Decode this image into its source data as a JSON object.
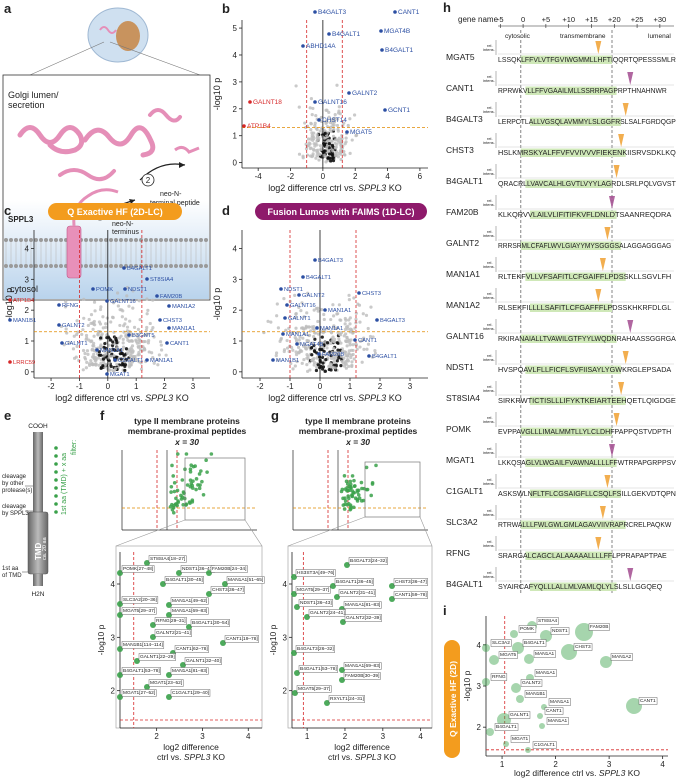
{
  "a": {
    "letter": "a",
    "lumen": [
      "Golgi lumen/",
      "secretion"
    ],
    "sppl3": "SPPL3",
    "step1": "1",
    "step2": "2",
    "neo": [
      "neo-N-",
      "terminus"
    ],
    "peptide": [
      "neo-N-",
      "terminal peptide"
    ],
    "cytosol": "cytosol"
  },
  "b": {
    "letter": "b",
    "ylabel": "-log10 p",
    "xlabel": [
      "log2 difference ctrl vs. ",
      "SPPL3",
      " KO"
    ],
    "xticks": [
      "-4",
      "-2",
      "0",
      "2",
      "4",
      "6"
    ],
    "yticks": [
      "0",
      "1",
      "2",
      "3",
      "4",
      "5"
    ],
    "labels_up": [
      "B4GALT3",
      "CANT1",
      "B4GALT1",
      "MGAT4B",
      "B4GALT1",
      "ABHD14A",
      "GALNT16",
      "GALNT2",
      "CHST14",
      "GCNT1",
      "MGAT5"
    ],
    "labels_down": [
      "GALNT18",
      "ATP1B4"
    ]
  },
  "c": {
    "letter": "c",
    "pill": "Q Exactive HF (2D-LC)",
    "ylabel": "-log10 p",
    "xlabel": [
      "log2 difference ctrl vs. ",
      "SPPL3",
      " KO"
    ],
    "xticks": [
      "-2",
      "-1",
      "0",
      "1",
      "2",
      "3"
    ],
    "yticks": [
      "0",
      "1",
      "2",
      "3",
      "4"
    ],
    "labels_up": [
      "B4GALT1",
      "ST8SIA4",
      "POMK",
      "NDST1",
      "FAM20B",
      "GALNT16",
      "MAN1A2",
      "RFNG",
      "CHST3",
      "MAN1B1",
      "GALNT2",
      "MAN1A1",
      "B3GNT5",
      "CANT1",
      "GALNT1",
      "MAN1A1",
      "C1GALT1",
      "MAN1A1",
      "MGAT1"
    ],
    "labels_down": [
      "ATP1B4",
      "LRRC59"
    ]
  },
  "d": {
    "letter": "d",
    "pill": "Fusion Lumos with FAIMS (1D-LC)",
    "ylabel": "-log10 p",
    "xlabel": [
      "log2 difference ctrl vs. ",
      "SPPL3",
      " KO"
    ],
    "xticks": [
      "-2",
      "-1",
      "0",
      "1",
      "2",
      "3"
    ],
    "yticks": [
      "0",
      "1",
      "2",
      "3",
      "4"
    ],
    "labels_up": [
      "B4GALT3",
      "B4GALT1",
      "NDST1",
      "GALNT2",
      "CHST3",
      "GALNT16",
      "MAN1A1",
      "B4GALT3",
      "GALNT1",
      "MAN1A1",
      "CANT1",
      "MGAT4B",
      "FAM20B",
      "B4GALT1",
      "MAN1B1",
      "MAN1A1"
    ]
  },
  "e": {
    "letter": "e",
    "cooh": "COOH",
    "h2n": "H2N",
    "cleave_other": [
      "cleavage",
      "by other",
      "protease(s)"
    ],
    "cleave_sppl3": [
      "cleavage",
      "by SPPL3"
    ],
    "first_tmd": [
      "1st aa",
      "of TMD"
    ],
    "tmd": "TMD",
    "tmd_len": "ca. 20 aa",
    "filter": "filter:",
    "filter_rule": "1st aa (TMD) + x aa"
  },
  "f": {
    "letter": "f",
    "title": [
      "type II membrane proteins",
      "membrane-proximal peptides"
    ],
    "x_eq": "x = 30",
    "ylabel": "-log10 p",
    "xlabel": [
      "log2 difference",
      "ctrl vs. ",
      "SPPL3",
      " KO"
    ],
    "xticks": [
      "2",
      "3",
      "4"
    ],
    "yticks": [
      "2",
      "3",
      "4"
    ],
    "labels": [
      "ST8SIA4[18–27]",
      "POMK[27–48]",
      "NDST1[36–47]",
      "FAM20B[24–34]",
      "B4GALT1[30–45]",
      "CHST3[36–47]",
      "MAN1A1[51–65]",
      "SLC3A2[20–36]",
      "MAN1A1[49–62]",
      "MAN1A1[69–83]",
      "MGAT5[29–37]",
      "RFNG[29–31]",
      "B4GALT1[30–54]",
      "GALNT2[21–41]",
      "CANT1[19–78]",
      "MAN1B1[114–114]",
      "CANT1[62–78]",
      "GALNT1[22–29]",
      "GALNT1[32–40]",
      "B4GALT1[53–78]",
      "MAN1A1[81–83]",
      "MGAT1[23–52]",
      "MGAT1[27–52]",
      "C1GALT1[29–40]"
    ]
  },
  "g": {
    "letter": "g",
    "title": [
      "type II membrane proteins",
      "membrane-proximal peptides"
    ],
    "x_eq": "x = 30",
    "ylabel": "-log10 p",
    "xlabel": [
      "log2 difference",
      "ctrl vs. ",
      "SPPL3",
      " KO"
    ],
    "xticks": [
      "1",
      "2",
      "3",
      "4"
    ],
    "yticks": [
      "2",
      "3",
      "4"
    ],
    "labels": [
      "B4GALT3[24–32]",
      "HS3ST3A[49–76]",
      "B4GALT1[36–45]",
      "CHST3[36–47]",
      "MGAT5[29–37]",
      "GALNT2[31–41]",
      "CANT1[59–78]",
      "NDST1[36–43]",
      "MAN1A1[81–83]",
      "GALNT2[24–41]",
      "GALNT2[32–39]",
      "B4GALT3[26–32]",
      "B4GALT1[53–78]",
      "MAN1A1[69–83]",
      "FAM20B[30–39]",
      "MGAT5[29–37]",
      "RXYLT1[24–31]"
    ]
  },
  "h": {
    "letter": "h",
    "header": "gene name",
    "ticks": [
      "-5",
      "0",
      "+5",
      "+10",
      "+15",
      "+20",
      "+25",
      "+30"
    ],
    "regions": [
      "cytosolic",
      "transmembrane",
      "lumenal"
    ],
    "intens": [
      "rel.",
      "intens."
    ],
    "rows": [
      {
        "gene": "MGAT5",
        "seq": "LSSQKLFFVLVTFGVIWGMMLLHFTIQQRTQPESSSMLR"
      },
      {
        "gene": "CANT1",
        "seq": "RPRWKVLLFFVGAAILMLLSSRRPAGPRPTHNAHNWR"
      },
      {
        "gene": "B4GALT3",
        "seq": "LERPCTLALLVGSQLAVMMYLSLGGFRSLSALFGRDQGP"
      },
      {
        "gene": "CHST3",
        "seq": "HSLKMRSKYALFFVFVVIVVVFIEKENKIISRVSDKLKQ"
      },
      {
        "gene": "B4GALT1",
        "seq": "QRACRLLVAVCALHLGVTLVYYLAGRDLSRLPQLVGVST"
      },
      {
        "gene": "FAM20B",
        "seq": "KLKQRVVLAILVLIFITIFKVFLDNLDTSAANREQDRA"
      },
      {
        "gene": "GALNT2",
        "seq": "RRRSRMLCFAFLWVLGIAYYMYSGGGSALAGGAGGGAG"
      },
      {
        "gene": "MAN1A1",
        "seq": "RLTEKFVLLVFSAFITLCFGAIFFLPDSSKLLSGVLFH"
      },
      {
        "gene": "MAN1A2",
        "seq": "RLSEKFILLLLSAFITLCFGAFFFLPDSSKHKRFDLGL"
      },
      {
        "gene": "GALNT16",
        "seq": "RKIRANAIALLTVAWILGTFYYLWQDNRAHAASSGGRGA"
      },
      {
        "gene": "NDST1",
        "seq": "HVSPQAVLFLLFICFLSVFIISAYLYGWKRGLEPSADA"
      },
      {
        "gene": "ST8SIA4",
        "seq": "SIRKRWTICTISLLLIFYKTKEIARTEEHQETLQIGDGE"
      },
      {
        "gene": "POMK",
        "seq": "EVPPAVGLLLIMALMMTLLYLCLDHFPAPPQSTVDPTH"
      },
      {
        "gene": "MGAT1",
        "seq": "LKKQSAGLVLWGAILFVAWNALLLLFFWTRPAPGRPPSV"
      },
      {
        "gene": "C1GALT1",
        "seq": "ASKSWLNFLTFLCGSAIGFLLCSQLFSILLGEKVDTQPN"
      },
      {
        "gene": "SLC3A2",
        "seq": "RTRWALLLFWLGWLGMLAGAVVIIVRAPRCRELPAQKW"
      },
      {
        "gene": "RFNG",
        "seq": "SRARGALCAGCLALAAAAALLLLFFLPPRAPAPTPAE"
      },
      {
        "gene": "B4GALT1",
        "seq": "SYAIRCAFYQLLLALLMLVAMLQLYLSLSLLGGQEQ"
      }
    ]
  },
  "i": {
    "letter": "i",
    "pill": "Q Exactive HF (2D)",
    "ylabel": "-log10 p",
    "xlabel": [
      "log2 difference ctrl vs. ",
      "SPPL3",
      " KO"
    ],
    "xticks": [
      "1",
      "2",
      "3",
      "4"
    ],
    "yticks": [
      "2",
      "3",
      "4"
    ],
    "labels": [
      "ST8SIA4",
      "POMK",
      "NDST1",
      "FAM20B",
      "SLC3A2",
      "B4GALT1",
      "CHST3",
      "MGAT5",
      "MAN1A1",
      "MAN1A2",
      "MAN1A1",
      "RFNG",
      "GALNT2",
      "MAN1B1",
      "MAN1A1",
      "CANT1",
      "GALNT1",
      "MAN1A1",
      "B4GALT1",
      "MGAT1",
      "C1GALT1",
      "CANT1"
    ]
  }
}
